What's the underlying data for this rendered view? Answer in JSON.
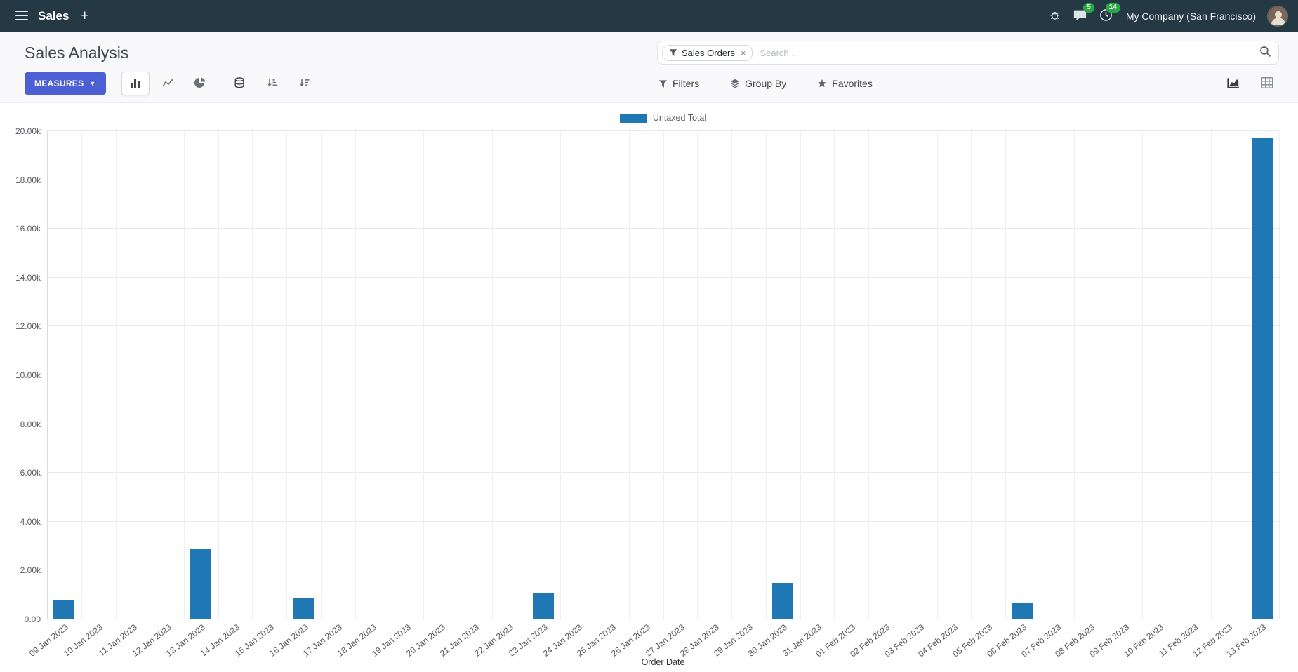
{
  "navbar": {
    "app_name": "Sales",
    "plus_label": "+",
    "company_name": "My Company (San Francisco)",
    "messages_badge": "5",
    "activities_badge": "14"
  },
  "control_panel": {
    "title": "Sales Analysis",
    "search": {
      "facet_label": "Sales Orders",
      "facet_remove": "×",
      "placeholder": "Search..."
    },
    "buttons": {
      "measures": "MEASURES",
      "filters": "Filters",
      "group_by": "Group By",
      "favorites": "Favorites"
    }
  },
  "chart_data": {
    "type": "bar",
    "title": "",
    "xlabel": "Order Date",
    "ylabel": "",
    "ylim": [
      0,
      20000
    ],
    "grid": true,
    "legend_position": "top",
    "y_ticks": [
      "0.00",
      "2.00k",
      "4.00k",
      "6.00k",
      "8.00k",
      "10.00k",
      "12.00k",
      "14.00k",
      "16.00k",
      "18.00k",
      "20.00k"
    ],
    "categories": [
      "09 Jan 2023",
      "10 Jan 2023",
      "11 Jan 2023",
      "12 Jan 2023",
      "13 Jan 2023",
      "14 Jan 2023",
      "15 Jan 2023",
      "16 Jan 2023",
      "17 Jan 2023",
      "18 Jan 2023",
      "19 Jan 2023",
      "20 Jan 2023",
      "21 Jan 2023",
      "22 Jan 2023",
      "23 Jan 2023",
      "24 Jan 2023",
      "25 Jan 2023",
      "26 Jan 2023",
      "27 Jan 2023",
      "28 Jan 2023",
      "29 Jan 2023",
      "30 Jan 2023",
      "31 Jan 2023",
      "01 Feb 2023",
      "02 Feb 2023",
      "03 Feb 2023",
      "04 Feb 2023",
      "05 Feb 2023",
      "06 Feb 2023",
      "07 Feb 2023",
      "08 Feb 2023",
      "09 Feb 2023",
      "10 Feb 2023",
      "11 Feb 2023",
      "12 Feb 2023",
      "13 Feb 2023"
    ],
    "series": [
      {
        "name": "Untaxed Total",
        "color": "#1f77b4",
        "values": [
          800,
          0,
          0,
          0,
          2900,
          0,
          0,
          900,
          0,
          0,
          0,
          0,
          0,
          0,
          1050,
          0,
          0,
          0,
          0,
          0,
          0,
          1500,
          0,
          0,
          0,
          0,
          0,
          0,
          650,
          0,
          0,
          0,
          0,
          0,
          0,
          19700
        ]
      }
    ]
  },
  "colors": {
    "navbar_bg": "#253944",
    "primary_button": "#4c5fd5",
    "badge_green": "#28a745",
    "bar_blue": "#1f77b4"
  }
}
